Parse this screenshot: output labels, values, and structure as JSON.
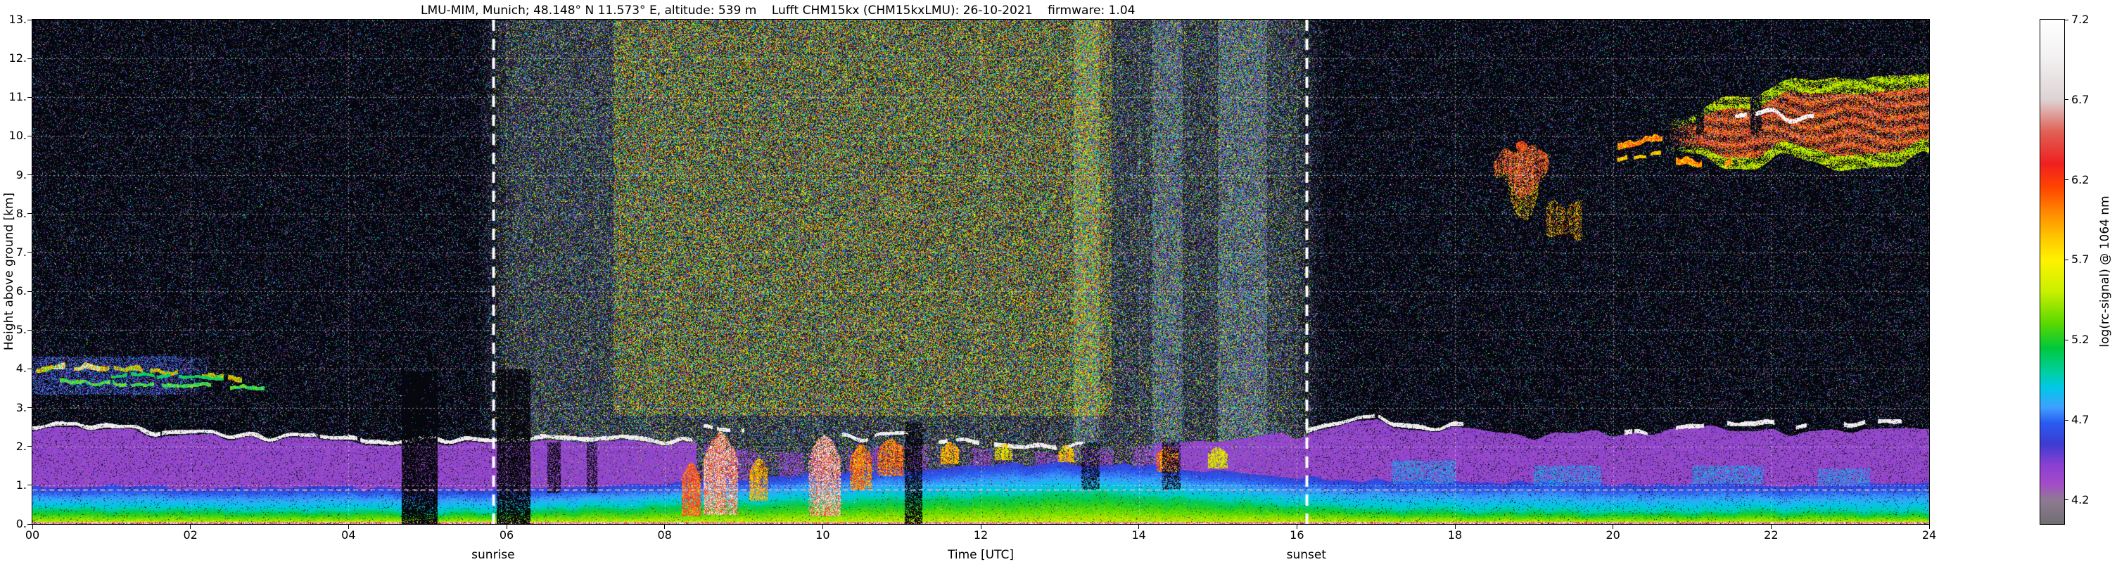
{
  "figure": {
    "title": "LMU-MIM, Munich; 48.148° N 11.573° E, altitude: 539 m    Lufft CHM15kx (CHM15kxLMU): 26-10-2021    firmware: 1.04",
    "xlabel": "Time [UTC]",
    "ylabel": "Height above ground [km]",
    "colorbar_label": "log(rc-signal) @ 1064 nm",
    "x_ticks": [
      "00",
      "02",
      "04",
      "06",
      "08",
      "10",
      "12",
      "14",
      "16",
      "18",
      "20",
      "22",
      "24"
    ],
    "y_ticks": [
      "13.",
      "12.",
      "11.",
      "10.",
      "9.",
      "8.",
      "7.",
      "6.",
      "5.",
      "4.",
      "3.",
      "2.",
      "1.",
      "0."
    ],
    "colorbar_ticks": [
      "7.2",
      "6.7",
      "6.2",
      "5.7",
      "5.2",
      "4.7",
      "4.2"
    ],
    "annotations": {
      "sunrise_label": "sunrise",
      "sunset_label": "sunset"
    }
  },
  "chart_data": {
    "type": "heatmap",
    "title": "LMU-MIM, Munich; 48.148° N 11.573° E, altitude: 539 m — Lufft CHM15kx (CHM15kxLMU): 26-10-2021 — firmware: 1.04",
    "xlabel": "Time [UTC]",
    "ylabel": "Height above ground [km]",
    "x_range_hours_utc": [
      0,
      24
    ],
    "x_tick_step_hours": 2,
    "y_range_km": [
      0,
      13
    ],
    "y_tick_step_km": 1,
    "grid": "white dashed, every 2 h and every 1 km",
    "colorbar": {
      "label": "log(rc-signal) @ 1064 nm",
      "min": 4.05,
      "max": 7.2,
      "tick_values": [
        7.2,
        6.7,
        6.2,
        5.7,
        5.2,
        4.7,
        4.2
      ],
      "stops": [
        {
          "v": 4.05,
          "c": "#6f6f72"
        },
        {
          "v": 4.2,
          "c": "#8f7a92"
        },
        {
          "v": 4.3,
          "c": "#a34cc8"
        },
        {
          "v": 4.42,
          "c": "#8a3fd2"
        },
        {
          "v": 4.55,
          "c": "#3c3cd2"
        },
        {
          "v": 4.68,
          "c": "#2a5af0"
        },
        {
          "v": 4.78,
          "c": "#3fa0ff"
        },
        {
          "v": 4.9,
          "c": "#00c8e8"
        },
        {
          "v": 5.0,
          "c": "#00cfa0"
        },
        {
          "v": 5.15,
          "c": "#00c83c"
        },
        {
          "v": 5.3,
          "c": "#58d800"
        },
        {
          "v": 5.5,
          "c": "#c8f000"
        },
        {
          "v": 5.7,
          "c": "#fff200"
        },
        {
          "v": 5.85,
          "c": "#ffc300"
        },
        {
          "v": 6.0,
          "c": "#ff8700"
        },
        {
          "v": 6.15,
          "c": "#ff4500"
        },
        {
          "v": 6.3,
          "c": "#ef2020"
        },
        {
          "v": 6.5,
          "c": "#e06055"
        },
        {
          "v": 6.7,
          "c": "#ddd3d4"
        },
        {
          "v": 6.95,
          "c": "#f2f0f0"
        },
        {
          "v": 7.2,
          "c": "#ffffff"
        }
      ]
    },
    "events": [
      {
        "label": "sunrise",
        "time_utc": 5.83
      },
      {
        "label": "sunset",
        "time_utc": 16.12
      }
    ],
    "features": {
      "background": {
        "night_speckle": 0.11,
        "day_speckle_extra": 0.3,
        "haze": {
          "t0": 7.35,
          "t1": 13.65,
          "z_min": 2.8,
          "extra": 0.22
        },
        "bright_columns": [
          [
            13.17,
            13.5
          ],
          [
            14.17,
            14.55
          ],
          [
            15.0,
            15.62
          ]
        ]
      },
      "boundary_layer": {
        "green_top": [
          [
            0,
            0.38
          ],
          [
            3,
            0.34
          ],
          [
            5.5,
            0.3
          ],
          [
            6.5,
            0.36
          ],
          [
            8,
            0.48
          ],
          [
            10,
            0.58
          ],
          [
            12,
            0.72
          ],
          [
            13.5,
            0.8
          ],
          [
            14.5,
            0.68
          ],
          [
            15.5,
            0.55
          ],
          [
            16.5,
            0.4
          ],
          [
            18,
            0.33
          ],
          [
            20,
            0.3
          ],
          [
            22,
            0.33
          ],
          [
            24,
            0.3
          ]
        ],
        "blue_top": [
          [
            0,
            0.97
          ],
          [
            3,
            0.95
          ],
          [
            5.5,
            0.9
          ],
          [
            7,
            0.98
          ],
          [
            9,
            1.18
          ],
          [
            11,
            1.4
          ],
          [
            13,
            1.58
          ],
          [
            14.5,
            1.45
          ],
          [
            16,
            1.2
          ],
          [
            17,
            1.1
          ],
          [
            19,
            1.05
          ],
          [
            21,
            1.02
          ],
          [
            24,
            1.0
          ]
        ],
        "magenta_top": [
          [
            0,
            2.38
          ],
          [
            0.8,
            2.52
          ],
          [
            1.6,
            2.25
          ],
          [
            3,
            2.15
          ],
          [
            4.5,
            2.1
          ],
          [
            6,
            2.05
          ],
          [
            7,
            2.1
          ],
          [
            8.2,
            2.02
          ],
          [
            9,
            1.88
          ],
          [
            10.5,
            1.9
          ],
          [
            12,
            1.95
          ],
          [
            13,
            1.88
          ],
          [
            14,
            2.0
          ],
          [
            15,
            2.05
          ],
          [
            16,
            2.3
          ],
          [
            17,
            2.6
          ],
          [
            17.9,
            2.45
          ],
          [
            19,
            2.2
          ],
          [
            20,
            2.32
          ],
          [
            21,
            2.48
          ],
          [
            22,
            2.35
          ],
          [
            23,
            2.46
          ],
          [
            24,
            2.32
          ]
        ],
        "magenta_values": [
          4.26,
          4.46
        ],
        "blue_values": [
          4.58,
          5.0
        ],
        "green_values": [
          5.05,
          5.5
        ],
        "fragmented_interval": [
          8.4,
          14.2
        ],
        "white_segments": [
          {
            "t0": 0,
            "t1": 8.35,
            "dz": 0.05,
            "gap": 0.05
          },
          {
            "t0": 8.5,
            "t1": 9.0,
            "dz": 0.45,
            "gap": 0.3
          },
          {
            "t0": 10.25,
            "t1": 11.1,
            "dz": 0.3,
            "gap": 0.25
          },
          {
            "t0": 11.45,
            "t1": 13.45,
            "dz": 0.12,
            "gap": 0.35
          },
          {
            "t0": 16.08,
            "t1": 18.1,
            "dz": 0.05,
            "gap": 0.15
          },
          {
            "t0": 20.15,
            "t1": 21.15,
            "dz": 0.0,
            "gap": 0.3
          },
          {
            "t0": 21.45,
            "t1": 23.65,
            "dz": 0.15,
            "gap": 0.42
          }
        ],
        "surface_line": {
          "z_top": 0.05,
          "v0": 6.3,
          "v1": 7.0
        },
        "artifact_line": {
          "z": 0.88,
          "v": 6.85
        }
      },
      "blue_patches": [
        {
          "t0": 17.2,
          "t1": 18.0,
          "z0": 1.05,
          "z1": 1.62
        },
        {
          "t0": 19.0,
          "t1": 19.85,
          "z0": 1.0,
          "z1": 1.5
        },
        {
          "t0": 21.0,
          "t1": 21.9,
          "z0": 1.05,
          "z1": 1.5
        },
        {
          "t0": 22.6,
          "t1": 23.25,
          "z0": 1.0,
          "z1": 1.42
        }
      ],
      "residual_layer": {
        "patch": {
          "t0": 0,
          "t1": 2.3,
          "z0": 3.35,
          "z1": 4.3,
          "v0": 4.3,
          "v1": 4.9,
          "density": 0.4
        },
        "streaks": [
          {
            "t0": 0.05,
            "t1": 2.65,
            "ctrl": [
              [
                0.05,
                3.95
              ],
              [
                0.7,
                4.02
              ],
              [
                1.4,
                3.9
              ],
              [
                2.1,
                3.82
              ],
              [
                2.65,
                3.68
              ]
            ],
            "th": 0.1,
            "v0": 5.0,
            "v1": 6.3,
            "gap": 0.18,
            "white": {
              "t0": 0.25,
              "t1": 0.85,
              "v": 6.9
            }
          },
          {
            "t0": 0.35,
            "t1": 2.95,
            "ctrl": [
              [
                0.35,
                3.62
              ],
              [
                1.2,
                3.58
              ],
              [
                2.0,
                3.55
              ],
              [
                2.95,
                3.45
              ]
            ],
            "th": 0.07,
            "v0": 4.8,
            "v1": 5.6,
            "gap": 0.3
          },
          {
            "t0": 1.0,
            "t1": 2.55,
            "ctrl": [
              [
                1.0,
                3.8
              ],
              [
                1.7,
                3.78
              ],
              [
                2.55,
                3.72
              ]
            ],
            "th": 0.06,
            "v0": 4.9,
            "v1": 5.3,
            "gap": 0.25
          }
        ]
      },
      "convective_cells": [
        {
          "t0": 8.22,
          "t1": 8.45,
          "z0": 0.2,
          "z1": 1.6,
          "v0": 5.7,
          "v1": 6.6
        },
        {
          "t0": 8.5,
          "t1": 8.92,
          "z0": 0.25,
          "z1": 2.35,
          "v0": 5.8,
          "v1": 7.1
        },
        {
          "t0": 9.08,
          "t1": 9.3,
          "z0": 0.6,
          "z1": 1.7,
          "v0": 5.4,
          "v1": 6.2
        },
        {
          "t0": 9.82,
          "t1": 10.22,
          "z0": 0.2,
          "z1": 2.3,
          "v0": 5.8,
          "v1": 7.15
        },
        {
          "t0": 10.35,
          "t1": 10.62,
          "z0": 0.9,
          "z1": 2.05,
          "v0": 5.5,
          "v1": 6.4
        },
        {
          "t0": 10.7,
          "t1": 11.02,
          "z0": 1.25,
          "z1": 2.2,
          "v0": 5.6,
          "v1": 6.5
        },
        {
          "t0": 11.5,
          "t1": 11.72,
          "z0": 1.55,
          "z1": 2.1,
          "v0": 5.4,
          "v1": 6.2
        },
        {
          "t0": 12.18,
          "t1": 12.4,
          "z0": 1.65,
          "z1": 2.05,
          "v0": 5.3,
          "v1": 6.0
        },
        {
          "t0": 12.98,
          "t1": 13.18,
          "z0": 1.6,
          "z1": 2.0,
          "v0": 5.3,
          "v1": 6.1
        },
        {
          "t0": 14.22,
          "t1": 14.5,
          "z0": 1.35,
          "z1": 2.0,
          "v0": 5.5,
          "v1": 6.4
        },
        {
          "t0": 14.88,
          "t1": 15.12,
          "z0": 1.45,
          "z1": 1.95,
          "v0": 5.3,
          "v1": 5.9
        }
      ],
      "attenuation_columns": [
        {
          "t0": 4.68,
          "t1": 5.12,
          "z0": 0,
          "z1": 3.9,
          "alpha": 0.85
        },
        {
          "t0": 5.88,
          "t1": 6.3,
          "z0": 0,
          "z1": 4.0,
          "alpha": 0.8
        },
        {
          "t0": 6.52,
          "t1": 6.68,
          "z0": 0.8,
          "z1": 2.1,
          "alpha": 0.6
        },
        {
          "t0": 7.02,
          "t1": 7.14,
          "z0": 0.8,
          "z1": 2.1,
          "alpha": 0.5
        },
        {
          "t0": 11.04,
          "t1": 11.26,
          "z0": 0,
          "z1": 2.6,
          "alpha": 0.7
        },
        {
          "t0": 13.28,
          "t1": 13.5,
          "z0": 0.9,
          "z1": 2.1,
          "alpha": 0.5
        },
        {
          "t0": 14.3,
          "t1": 14.52,
          "z0": 0.9,
          "z1": 2.1,
          "alpha": 0.5
        }
      ],
      "midlevel_cloud": {
        "main": {
          "t0": 18.5,
          "t1": 19.18,
          "top_base": 9.35,
          "top_var": 0.3,
          "v0": 5.7,
          "v1": 6.6,
          "density": 0.8,
          "white_chance": 0.08
        },
        "virga": {
          "depth": 0.8,
          "v0": 5.4,
          "v1": 6.2,
          "density": 0.4
        },
        "fragment": {
          "t0": 19.16,
          "t1": 19.6,
          "z0": 7.3,
          "z1": 8.45,
          "v0": 5.4,
          "v1": 6.3,
          "density": 0.45
        },
        "dot": {
          "t": 18.84,
          "z": 9.74,
          "rt": 0.07,
          "rz": 0.12,
          "v0": 5.9,
          "v1": 6.5
        }
      },
      "cirrus": {
        "pre": [
          {
            "t0": 19.9,
            "t1": 20.68,
            "ctrl": [
              [
                19.9,
                9.6
              ],
              [
                20.2,
                9.75
              ],
              [
                20.68,
                9.9
              ]
            ],
            "th": 0.12,
            "v0": 5.6,
            "v1": 6.4,
            "gap": 0.3
          },
          {
            "t0": 20.0,
            "t1": 20.6,
            "ctrl": [
              [
                20.0,
                9.35
              ],
              [
                20.3,
                9.42
              ],
              [
                20.6,
                9.5
              ]
            ],
            "th": 0.08,
            "v0": 5.5,
            "v1": 6.1,
            "gap": 0.4
          }
        ],
        "main": {
          "t0": 20.65,
          "t1": 24,
          "top_base": 10.25,
          "top_var": 0.5,
          "bot_base": 9.25,
          "bot_var": 0.45,
          "rise": {
            "t0": 20.9,
            "t1": 21.9,
            "dz": 0.75
          },
          "top_bump": {
            "t0": 22.5,
            "t1": 23.3,
            "dz": 0.4
          },
          "v0": 5.3,
          "v1": 6.65,
          "density": 0.85,
          "white_core": {
            "t0": 21.55,
            "t1": 22.75,
            "z_base": 10.5,
            "z_var": 0.18,
            "th": 0.1,
            "v": 7.05,
            "gap": 0.12
          }
        },
        "lower_streak": {
          "t0": 20.8,
          "t1": 21.6,
          "ctrl": [
            [
              20.8,
              9.3
            ],
            [
              21.2,
              9.2
            ],
            [
              21.6,
              9.3
            ]
          ],
          "th": 0.13,
          "v0": 5.6,
          "v1": 6.3,
          "gap": 0.3
        }
      }
    }
  }
}
